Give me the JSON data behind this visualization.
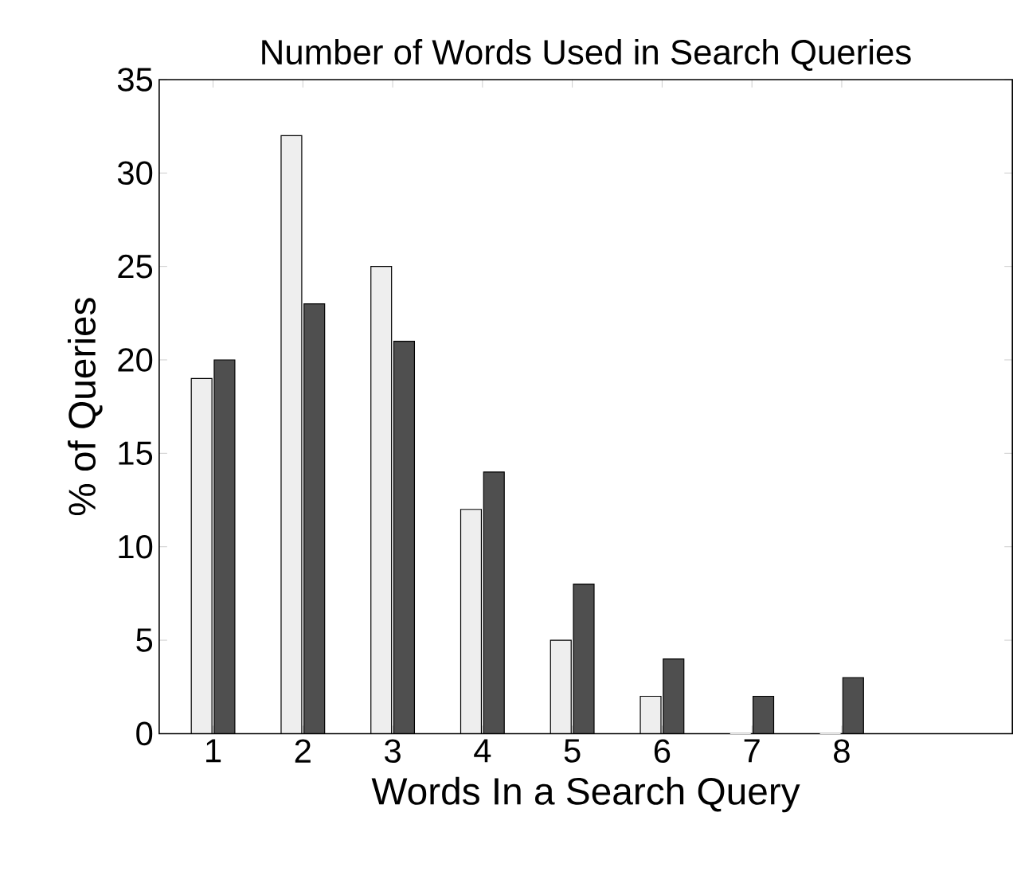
{
  "chart_data": {
    "type": "bar",
    "title": "Number of Words Used in Search Queries",
    "xlabel": "Words In a Search Query",
    "ylabel": "% of Queries",
    "x": [
      1,
      2,
      3,
      4,
      5,
      6,
      7,
      8
    ],
    "series": [
      {
        "color": "#eeeeee",
        "values": [
          19,
          32,
          25,
          12,
          5,
          2,
          0,
          0
        ]
      },
      {
        "color": "#4f4f4f",
        "values": [
          20,
          23,
          21,
          14,
          8,
          4,
          2,
          3
        ]
      }
    ],
    "xlim": [
      0.4,
      9.9
    ],
    "xticks": [
      1,
      2,
      3,
      4,
      5,
      6,
      7,
      8
    ],
    "ylim": [
      0,
      35
    ],
    "yticks": [
      0,
      5,
      10,
      15,
      20,
      25,
      30,
      35
    ],
    "grid": false
  }
}
